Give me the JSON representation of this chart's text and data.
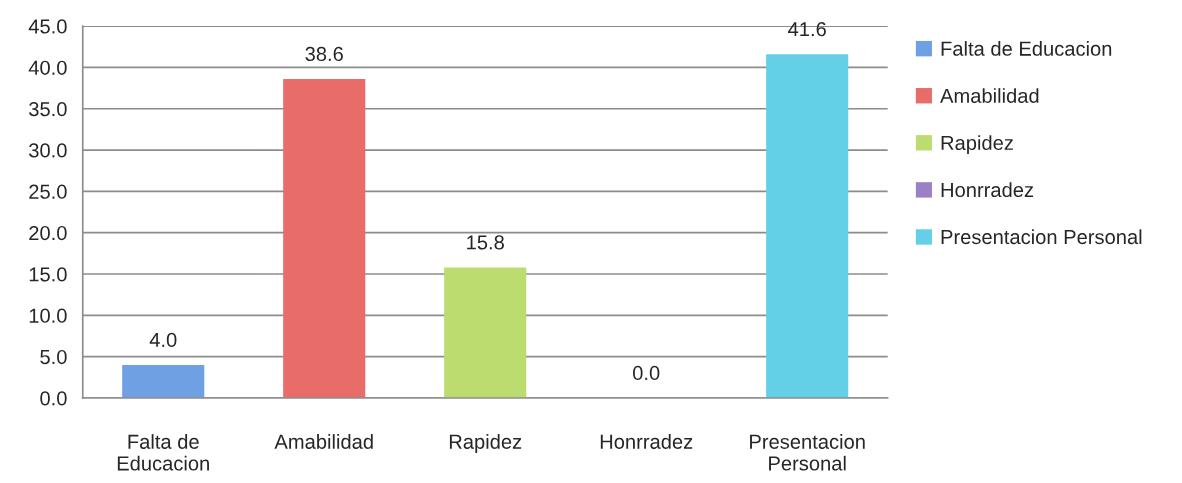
{
  "chart_data": {
    "type": "bar",
    "stacked": true,
    "categories": [
      "Falta de Educacion",
      "Amabilidad",
      "Rapidez",
      "Honrradez",
      "Presentacion Personal"
    ],
    "series": [
      {
        "name": "Falta de Educacion",
        "color": "#6fa0e4",
        "values": [
          4.0,
          null,
          null,
          null,
          null
        ],
        "value_labels": [
          "4.0",
          null,
          null,
          null,
          null
        ]
      },
      {
        "name": "Amabilidad",
        "color": "#e86c68",
        "values": [
          null,
          38.6,
          null,
          null,
          null
        ],
        "value_labels": [
          null,
          "38.6",
          null,
          null,
          null
        ]
      },
      {
        "name": "Rapidez",
        "color": "#bcdc6f",
        "values": [
          null,
          null,
          15.8,
          null,
          null
        ],
        "value_labels": [
          null,
          null,
          "15.8",
          null,
          null
        ]
      },
      {
        "name": "Honrradez",
        "color": "#9b80c6",
        "values": [
          null,
          null,
          null,
          0.0,
          null
        ],
        "value_labels": [
          null,
          null,
          null,
          "0.0",
          null
        ]
      },
      {
        "name": "Presentacion Personal",
        "color": "#63d0e8",
        "values": [
          null,
          null,
          null,
          null,
          41.6
        ],
        "value_labels": [
          null,
          null,
          null,
          null,
          "41.6"
        ]
      }
    ],
    "ylim": [
      0,
      45
    ],
    "yticks": [
      {
        "value": 0,
        "label": "0.0"
      },
      {
        "value": 5,
        "label": "5.0"
      },
      {
        "value": 10,
        "label": "10.0"
      },
      {
        "value": 15,
        "label": "15.0"
      },
      {
        "value": 20,
        "label": "20.0"
      },
      {
        "value": 25,
        "label": "25.0"
      },
      {
        "value": 30,
        "label": "30.0"
      },
      {
        "value": 35,
        "label": "35.0"
      },
      {
        "value": 40,
        "label": "40.0"
      },
      {
        "value": 45,
        "label": "45.0"
      }
    ],
    "grid": "y",
    "legend": "right"
  }
}
